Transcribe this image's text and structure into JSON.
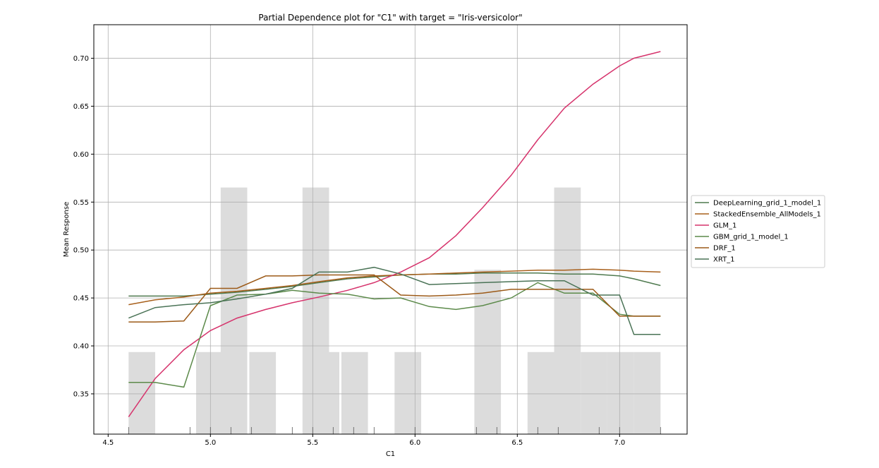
{
  "chart_data": {
    "type": "line",
    "title": "Partial Dependence plot for \"C1\" with target = \"Iris-versicolor\"",
    "xlabel": "C1",
    "ylabel": "Mean Response",
    "xlim": [
      4.43,
      7.33
    ],
    "ylim": [
      0.308,
      0.735
    ],
    "x_ticks": [
      4.5,
      5.0,
      5.5,
      6.0,
      6.5,
      7.0
    ],
    "x_tick_labels": [
      "4.5",
      "5.0",
      "5.5",
      "6.0",
      "6.5",
      "7.0"
    ],
    "y_ticks": [
      0.35,
      0.4,
      0.45,
      0.5,
      0.55,
      0.6,
      0.65,
      0.7
    ],
    "y_tick_labels": [
      "0.35",
      "0.40",
      "0.45",
      "0.50",
      "0.55",
      "0.60",
      "0.65",
      "0.70"
    ],
    "grid": true,
    "legend_position": "right",
    "x": [
      4.6,
      4.73,
      4.87,
      5.0,
      5.13,
      5.27,
      5.4,
      5.53,
      5.67,
      5.8,
      5.93,
      6.07,
      6.2,
      6.33,
      6.47,
      6.6,
      6.73,
      6.87,
      7.0,
      7.07,
      7.2
    ],
    "series": [
      {
        "name": "DeepLearning_grid_1_model_1",
        "color": "#4f7a4f",
        "values": [
          0.452,
          0.452,
          0.452,
          0.454,
          0.456,
          0.459,
          0.462,
          0.466,
          0.47,
          0.472,
          0.474,
          0.475,
          0.475,
          0.476,
          0.476,
          0.476,
          0.475,
          0.475,
          0.473,
          0.47,
          0.463
        ]
      },
      {
        "name": "StackedEnsemble_AllModels_1",
        "color": "#a8601c",
        "values": [
          0.443,
          0.448,
          0.451,
          0.455,
          0.457,
          0.46,
          0.463,
          0.467,
          0.471,
          0.473,
          0.474,
          0.475,
          0.476,
          0.477,
          0.478,
          0.479,
          0.479,
          0.48,
          0.479,
          0.478,
          0.477
        ]
      },
      {
        "name": "GLM_1",
        "color": "#d6336c",
        "values": [
          0.326,
          0.366,
          0.396,
          0.416,
          0.429,
          0.438,
          0.445,
          0.451,
          0.458,
          0.466,
          0.477,
          0.492,
          0.515,
          0.544,
          0.578,
          0.615,
          0.648,
          0.673,
          0.692,
          0.7,
          0.707
        ]
      },
      {
        "name": "GBM_grid_1_model_1",
        "color": "#5c8a4a",
        "values": [
          0.362,
          0.362,
          0.357,
          0.442,
          0.453,
          0.454,
          0.458,
          0.455,
          0.454,
          0.449,
          0.45,
          0.441,
          0.438,
          0.442,
          0.45,
          0.466,
          0.455,
          0.455,
          0.433,
          0.431,
          0.431
        ]
      },
      {
        "name": "DRF_1",
        "color": "#9c5a18",
        "values": [
          0.425,
          0.425,
          0.426,
          0.46,
          0.46,
          0.473,
          0.473,
          0.474,
          0.474,
          0.474,
          0.453,
          0.452,
          0.453,
          0.455,
          0.459,
          0.459,
          0.459,
          0.459,
          0.431,
          0.431,
          0.431
        ]
      },
      {
        "name": "XRT_1",
        "color": "#4a7356",
        "values": [
          0.429,
          0.44,
          0.443,
          0.445,
          0.449,
          0.454,
          0.46,
          0.477,
          0.477,
          0.482,
          0.475,
          0.464,
          0.465,
          0.466,
          0.467,
          0.468,
          0.468,
          0.453,
          0.453,
          0.412,
          0.412
        ]
      }
    ],
    "histogram": {
      "color": "#dcdcdc",
      "bar_width": 0.13,
      "bars": [
        {
          "x": 4.6,
          "height": 0.0856
        },
        {
          "x": 4.93,
          "height": 0.0856
        },
        {
          "x": 5.05,
          "height": 0.2572
        },
        {
          "x": 5.19,
          "height": 0.0856
        },
        {
          "x": 5.45,
          "height": 0.2572
        },
        {
          "x": 5.5,
          "height": 0.0856
        },
        {
          "x": 5.64,
          "height": 0.0856
        },
        {
          "x": 5.9,
          "height": 0.0856
        },
        {
          "x": 6.29,
          "height": 0.1714
        },
        {
          "x": 6.55,
          "height": 0.0856
        },
        {
          "x": 6.68,
          "height": 0.2572
        },
        {
          "x": 6.81,
          "height": 0.0856
        },
        {
          "x": 6.94,
          "height": 0.0856
        },
        {
          "x": 7.07,
          "height": 0.0856
        }
      ]
    },
    "rug": [
      4.6,
      4.9,
      5.0,
      5.1,
      5.2,
      5.4,
      5.5,
      5.6,
      5.7,
      5.8,
      6.0,
      6.3,
      6.4,
      6.6,
      6.7,
      6.9,
      7.0,
      7.2
    ]
  }
}
